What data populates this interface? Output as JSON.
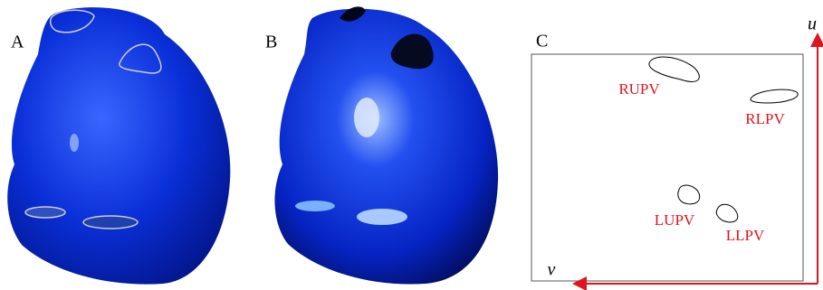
{
  "panels": {
    "a": "A",
    "b": "B",
    "c": "C"
  },
  "regions": [
    "RUPV",
    "RLPV",
    "LUPV",
    "LLPV"
  ],
  "axes": {
    "u": "u",
    "v": "v"
  }
}
